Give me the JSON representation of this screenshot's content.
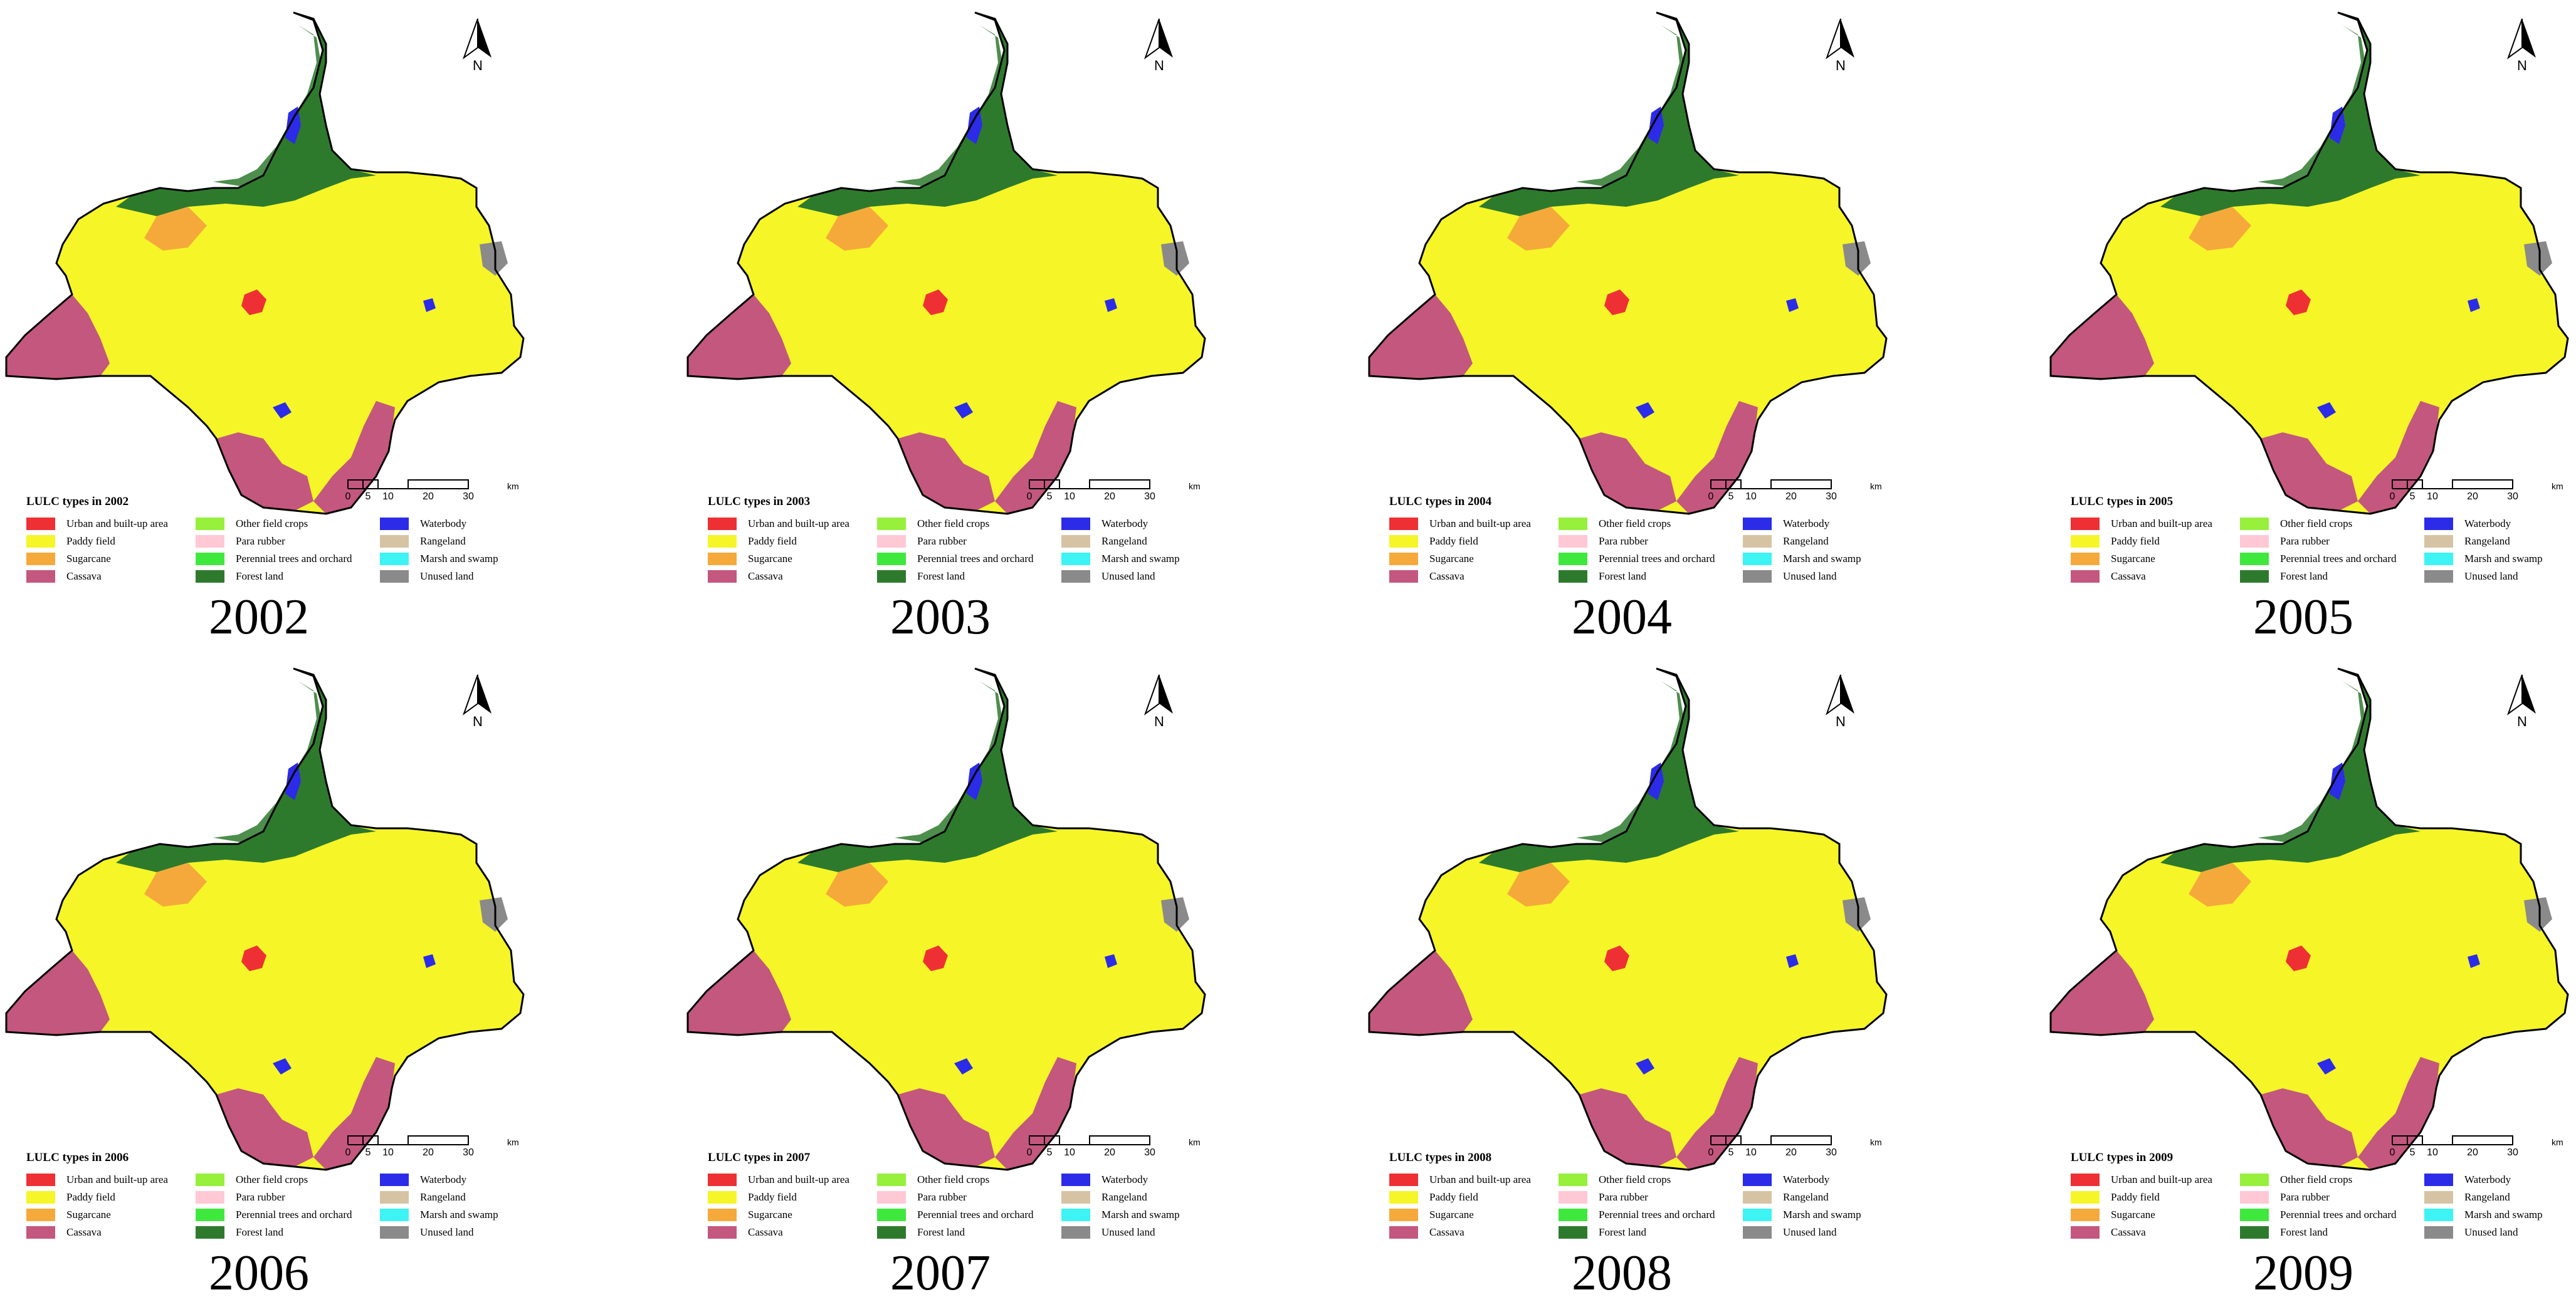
{
  "north_label": "N",
  "scale_bar": {
    "ticks": [
      "0",
      "5",
      "10",
      "20",
      "30"
    ],
    "tick_km": [
      0,
      5,
      10,
      20,
      30
    ],
    "unit": "km"
  },
  "legend_items": [
    {
      "label": "Urban and built-up area",
      "color": "#ee3034"
    },
    {
      "label": "Paddy field",
      "color": "#f5f528"
    },
    {
      "label": "Sugarcane",
      "color": "#f6a93b"
    },
    {
      "label": "Cassava",
      "color": "#c4577d"
    },
    {
      "label": "Other field crops",
      "color": "#96f03c"
    },
    {
      "label": "Para rubber",
      "color": "#ffc8d4"
    },
    {
      "label": "Perennial trees and orchard",
      "color": "#3fe83c"
    },
    {
      "label": "Forest land",
      "color": "#2e7a2d"
    },
    {
      "label": "Waterbody",
      "color": "#2b2be8"
    },
    {
      "label": "Rangeland",
      "color": "#d5c3a4"
    },
    {
      "label": "Marsh and swamp",
      "color": "#3ef3f3"
    },
    {
      "label": "Unused land",
      "color": "#8a8a8a"
    }
  ],
  "panels": [
    {
      "year": "2002",
      "legend_title": "LULC types in 2002"
    },
    {
      "year": "2003",
      "legend_title": "LULC types in 2003"
    },
    {
      "year": "2004",
      "legend_title": "LULC types in 2004"
    },
    {
      "year": "2005",
      "legend_title": "LULC types in 2005"
    },
    {
      "year": "2006",
      "legend_title": "LULC types in 2006"
    },
    {
      "year": "2007",
      "legend_title": "LULC types in 2007"
    },
    {
      "year": "2008",
      "legend_title": "LULC types in 2008"
    },
    {
      "year": "2009",
      "legend_title": "LULC types in 2009"
    }
  ]
}
